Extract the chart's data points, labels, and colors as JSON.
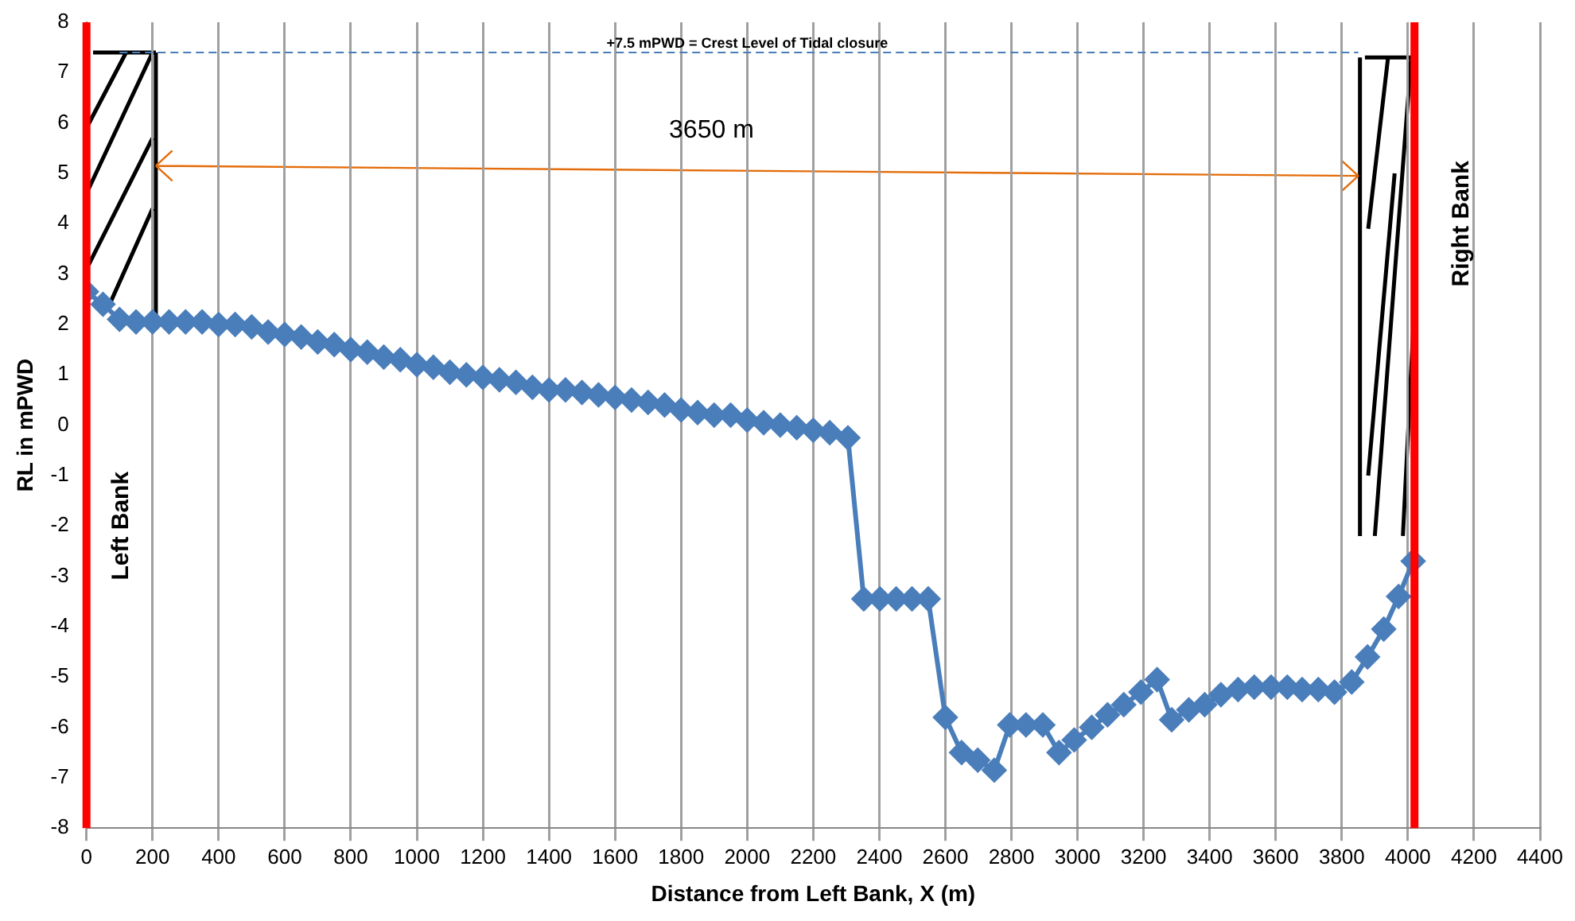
{
  "chart_data": {
    "type": "line",
    "xlabel": "Distance from Left Bank, X (m)",
    "ylabel": "RL in mPWD",
    "x": [
      0,
      50,
      100,
      150,
      200,
      250,
      300,
      350,
      400,
      450,
      500,
      550,
      600,
      650,
      700,
      750,
      800,
      850,
      900,
      950,
      1000,
      1050,
      1100,
      1150,
      1200,
      1250,
      1300,
      1350,
      1400,
      1450,
      1500,
      1550,
      1600,
      1650,
      1700,
      1750,
      1800,
      1850,
      1900,
      1950,
      2000,
      2050,
      2100,
      2150,
      2200,
      2250,
      2305,
      2353,
      2402,
      2451,
      2499,
      2548,
      2600,
      2649,
      2698,
      2748,
      2795,
      2844,
      2895,
      2944,
      2990,
      3043,
      3091,
      3140,
      3192,
      3241,
      3285,
      3337,
      3385,
      3434,
      3486,
      3535,
      3586,
      3635,
      3680,
      3729,
      3778,
      3830,
      3878,
      3927,
      3972,
      4016
    ],
    "series": [
      {
        "color": "#4a7ebb",
        "values": [
          2.65,
          2.4,
          2.1,
          2.05,
          2.05,
          2.05,
          2.05,
          2.05,
          2.0,
          2.0,
          1.95,
          1.85,
          1.8,
          1.75,
          1.65,
          1.6,
          1.5,
          1.45,
          1.35,
          1.3,
          1.2,
          1.15,
          1.05,
          1.0,
          0.95,
          0.9,
          0.85,
          0.75,
          0.7,
          0.7,
          0.65,
          0.6,
          0.55,
          0.5,
          0.45,
          0.4,
          0.3,
          0.25,
          0.2,
          0.2,
          0.1,
          0.05,
          0.0,
          -0.05,
          -0.1,
          -0.15,
          -0.25,
          -3.45,
          -3.45,
          -3.45,
          -3.45,
          -3.45,
          -5.8,
          -6.5,
          -6.65,
          -6.85,
          -5.95,
          -5.95,
          -5.95,
          -6.5,
          -6.25,
          -6.0,
          -5.75,
          -5.55,
          -5.3,
          -5.05,
          -5.85,
          -5.65,
          -5.55,
          -5.35,
          -5.25,
          -5.2,
          -5.2,
          -5.2,
          -5.25,
          -5.25,
          -5.3,
          -5.1,
          -4.6,
          -4.05,
          -3.4,
          -2.7
        ]
      }
    ],
    "xlim": [
      0,
      4400
    ],
    "xticks": [
      0,
      200,
      400,
      600,
      800,
      1000,
      1200,
      1400,
      1600,
      1800,
      2000,
      2200,
      2400,
      2600,
      2800,
      3000,
      3200,
      3400,
      3600,
      3800,
      4000,
      4200,
      4400
    ],
    "ylim": [
      -8,
      8
    ],
    "yticks": [
      -8,
      -7,
      -6,
      -5,
      -4,
      -3,
      -2,
      -1,
      0,
      1,
      2,
      3,
      4,
      5,
      6,
      7,
      8
    ],
    "grid": "x",
    "legend": false,
    "marker": "diamond",
    "line_style": "solid",
    "ref_lines": [
      {
        "axis": "y",
        "value": 7.4,
        "label": "+7.5 mPWD = Crest Level of Tidal closure",
        "color": "#4a7ebb",
        "line_style": "dashed"
      },
      {
        "axis": "x",
        "value": 0,
        "label": "Left Bank",
        "color": "#ff0000",
        "line_style": "solid"
      },
      {
        "axis": "x",
        "value": 4020,
        "label": "Right Bank",
        "color": "#ff0000",
        "line_style": "solid"
      }
    ],
    "annotations": [
      "3650 m"
    ]
  }
}
